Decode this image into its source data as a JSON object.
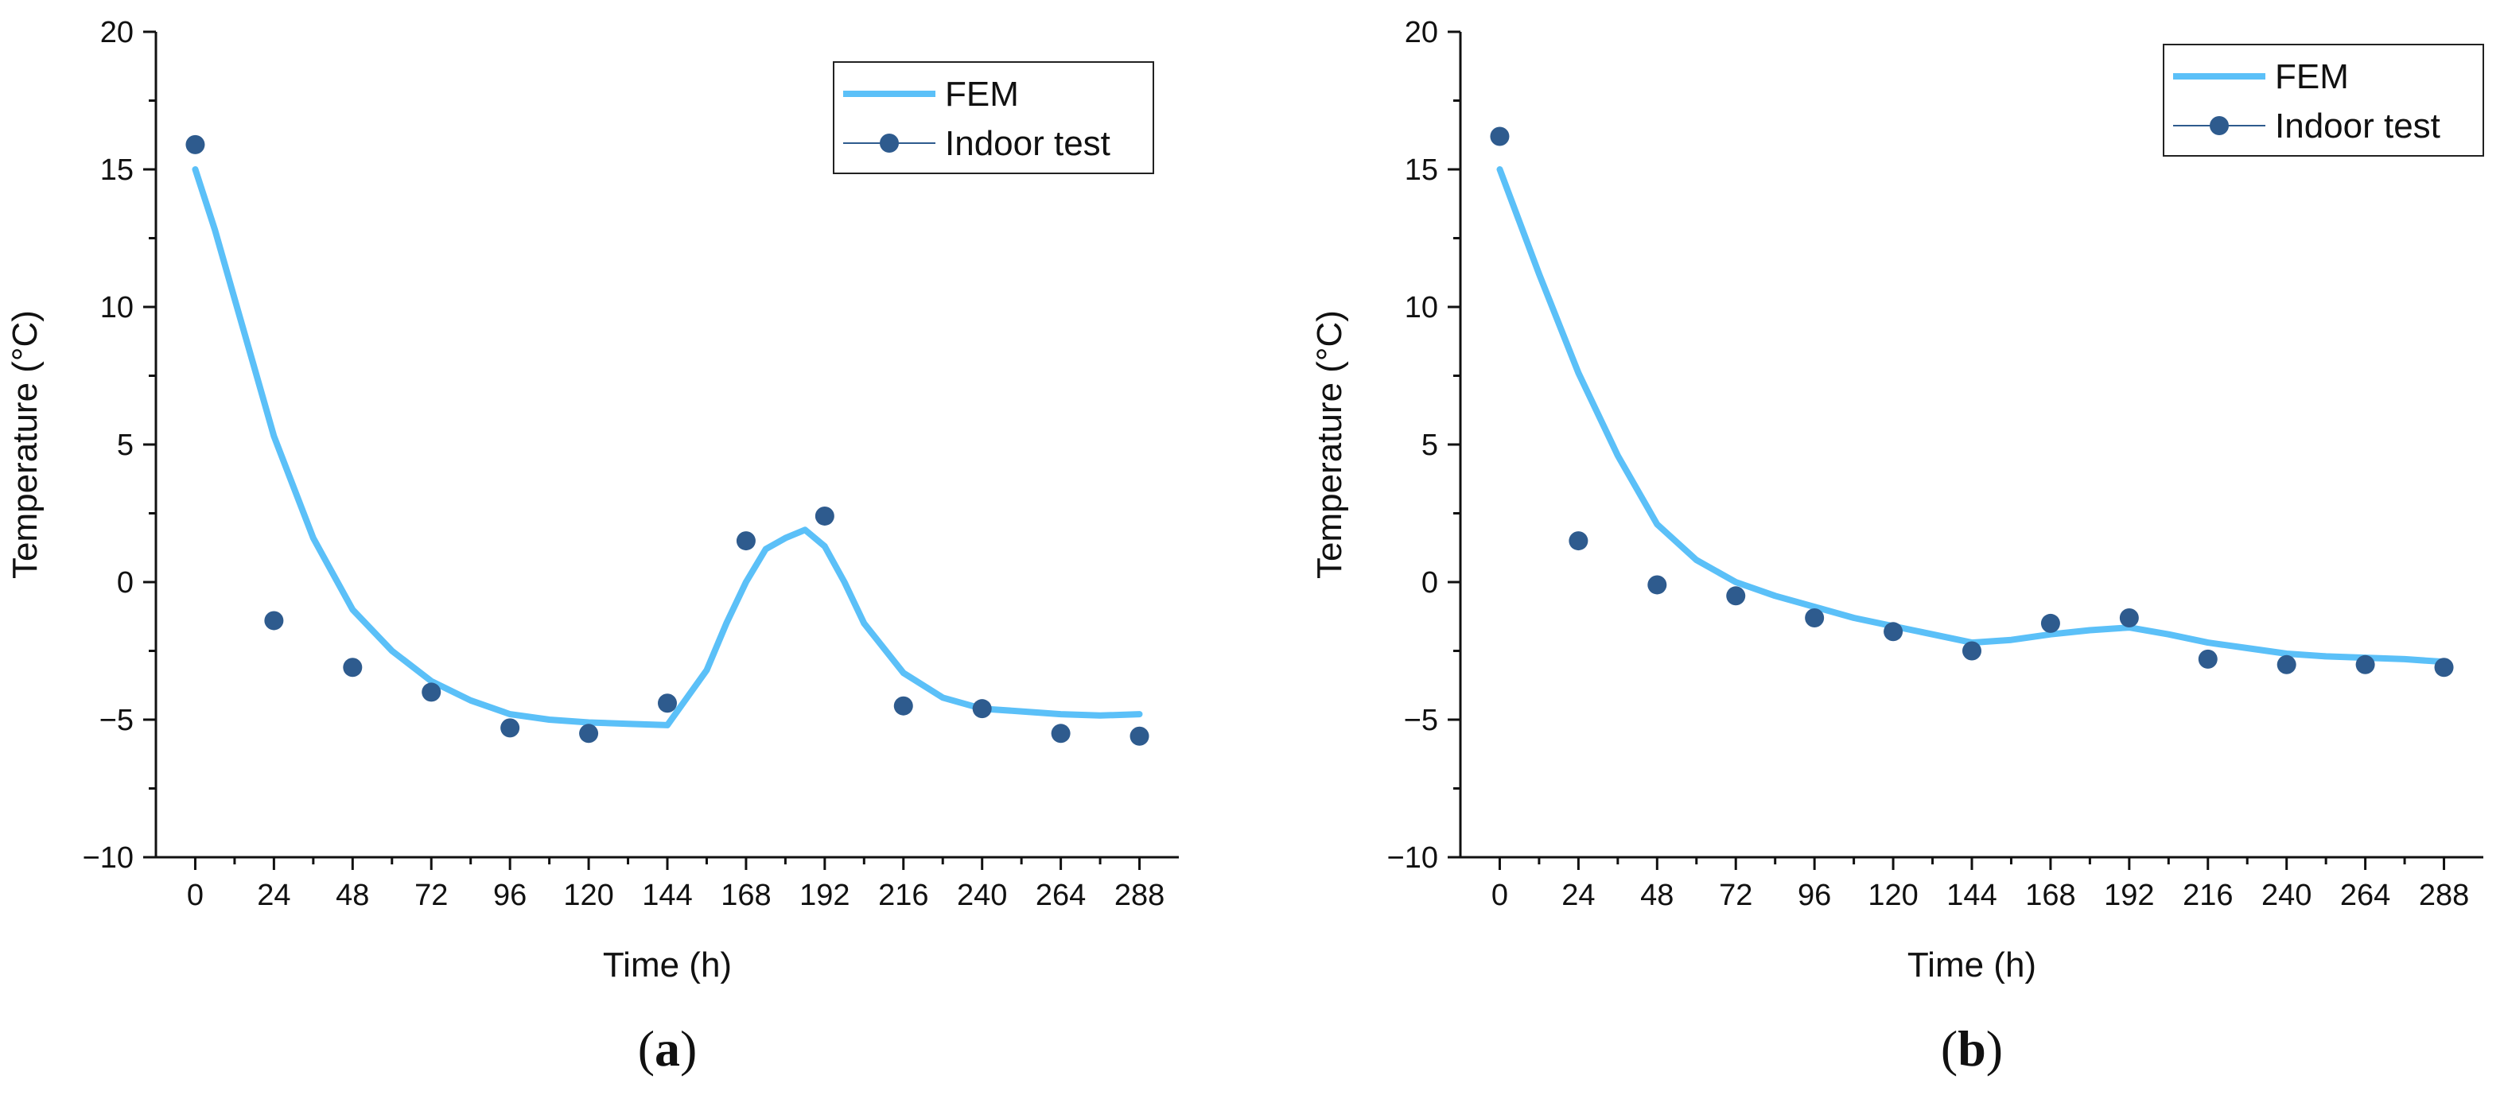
{
  "chart_data": [
    {
      "type": "line",
      "panel_label": "a",
      "title": "",
      "xlabel": "Time (h)",
      "ylabel": "Temperature (°C)",
      "xlim": [
        -12,
        300
      ],
      "ylim": [
        -10,
        20
      ],
      "xticks": [
        0,
        24,
        48,
        72,
        96,
        120,
        144,
        168,
        192,
        216,
        240,
        264,
        288
      ],
      "yticks": [
        -10,
        -5,
        0,
        5,
        10,
        15,
        20
      ],
      "legend_position": "top-right",
      "series": [
        {
          "name": "FEM",
          "kind": "line",
          "color": "#5BC0F8",
          "x": [
            0,
            6,
            12,
            18,
            24,
            36,
            48,
            60,
            72,
            84,
            96,
            108,
            120,
            132,
            144,
            156,
            162,
            168,
            174,
            180,
            186,
            192,
            198,
            204,
            216,
            228,
            240,
            252,
            264,
            276,
            288
          ],
          "y": [
            15,
            12.8,
            10.3,
            7.8,
            5.3,
            1.6,
            -1.0,
            -2.5,
            -3.6,
            -4.3,
            -4.8,
            -5.0,
            -5.1,
            -5.15,
            -5.2,
            -3.2,
            -1.5,
            0.0,
            1.2,
            1.6,
            1.9,
            1.3,
            0.0,
            -1.5,
            -3.3,
            -4.2,
            -4.6,
            -4.7,
            -4.8,
            -4.85,
            -4.8
          ]
        },
        {
          "name": "Indoor test",
          "kind": "scatter",
          "color": "#2E5B8E",
          "x": [
            0,
            24,
            48,
            72,
            96,
            120,
            144,
            168,
            192,
            216,
            240,
            264,
            288
          ],
          "y": [
            15.9,
            -1.4,
            -3.1,
            -4.0,
            -5.3,
            -5.5,
            -4.4,
            1.5,
            2.4,
            -4.5,
            -4.6,
            -5.5,
            -5.6
          ]
        }
      ]
    },
    {
      "type": "line",
      "panel_label": "b",
      "title": "",
      "xlabel": "Time (h)",
      "ylabel": "Temperature (°C)",
      "xlim": [
        -12,
        300
      ],
      "ylim": [
        -10,
        20
      ],
      "xticks": [
        0,
        24,
        48,
        72,
        96,
        120,
        144,
        168,
        192,
        216,
        240,
        264,
        288
      ],
      "yticks": [
        -10,
        -5,
        0,
        5,
        10,
        15,
        20
      ],
      "legend_position": "top-right",
      "series": [
        {
          "name": "FEM",
          "kind": "line",
          "color": "#5BC0F8",
          "x": [
            0,
            12,
            24,
            36,
            48,
            60,
            72,
            84,
            96,
            108,
            120,
            132,
            144,
            156,
            168,
            180,
            192,
            204,
            216,
            228,
            240,
            252,
            264,
            276,
            288
          ],
          "y": [
            15,
            11.2,
            7.6,
            4.6,
            2.1,
            0.8,
            0.0,
            -0.5,
            -0.9,
            -1.3,
            -1.6,
            -1.9,
            -2.2,
            -2.1,
            -1.9,
            -1.75,
            -1.65,
            -1.9,
            -2.2,
            -2.4,
            -2.6,
            -2.7,
            -2.75,
            -2.8,
            -2.9
          ]
        },
        {
          "name": "Indoor test",
          "kind": "scatter",
          "color": "#2E5B8E",
          "x": [
            0,
            24,
            48,
            72,
            96,
            120,
            144,
            168,
            192,
            216,
            240,
            264,
            288
          ],
          "y": [
            16.2,
            1.5,
            -0.1,
            -0.5,
            -1.3,
            -1.8,
            -2.5,
            -1.5,
            -1.3,
            -2.8,
            -3.0,
            -3.0,
            -3.1
          ]
        }
      ]
    }
  ]
}
